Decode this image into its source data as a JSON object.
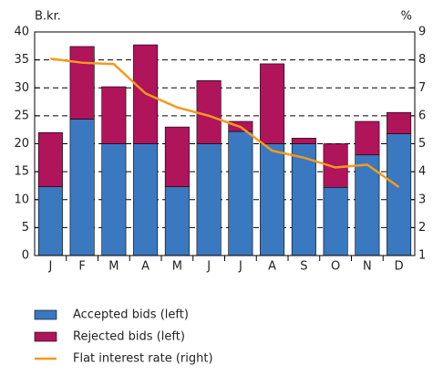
{
  "chart_data": {
    "type": "bar",
    "stacked": true,
    "y_unit_label": "B.kr.",
    "y2_unit_label": "%",
    "categories": [
      "J",
      "F",
      "M",
      "A",
      "M",
      "J",
      "J",
      "A",
      "S",
      "O",
      "N",
      "D"
    ],
    "series": [
      {
        "name": "Accepted bids (left)",
        "type": "bar",
        "color": "#3a78c0",
        "values": [
          12.3,
          24.4,
          20,
          20,
          12.3,
          20,
          22.2,
          20,
          20,
          12.2,
          18,
          21.8
        ]
      },
      {
        "name": "Rejected bids (left)",
        "type": "bar",
        "color": "#b0145a",
        "values": [
          9.7,
          13,
          10.2,
          17.7,
          10.7,
          11.3,
          1.8,
          14.3,
          1,
          7.8,
          6,
          3.8
        ]
      },
      {
        "name": "Flat interest rate (right)",
        "type": "line",
        "axis": "y2",
        "color": "#f39a1e",
        "values": [
          8.04,
          7.9,
          7.85,
          6.8,
          6.3,
          6.0,
          5.6,
          4.75,
          4.5,
          4.15,
          4.25,
          3.45
        ]
      }
    ],
    "ylim": [
      0,
      40
    ],
    "yticks": [
      0,
      5,
      10,
      15,
      20,
      25,
      30,
      35,
      40
    ],
    "y2lim": [
      1,
      9
    ],
    "y2ticks": [
      1,
      2,
      3,
      4,
      5,
      6,
      7,
      8,
      9
    ],
    "grid": true
  }
}
